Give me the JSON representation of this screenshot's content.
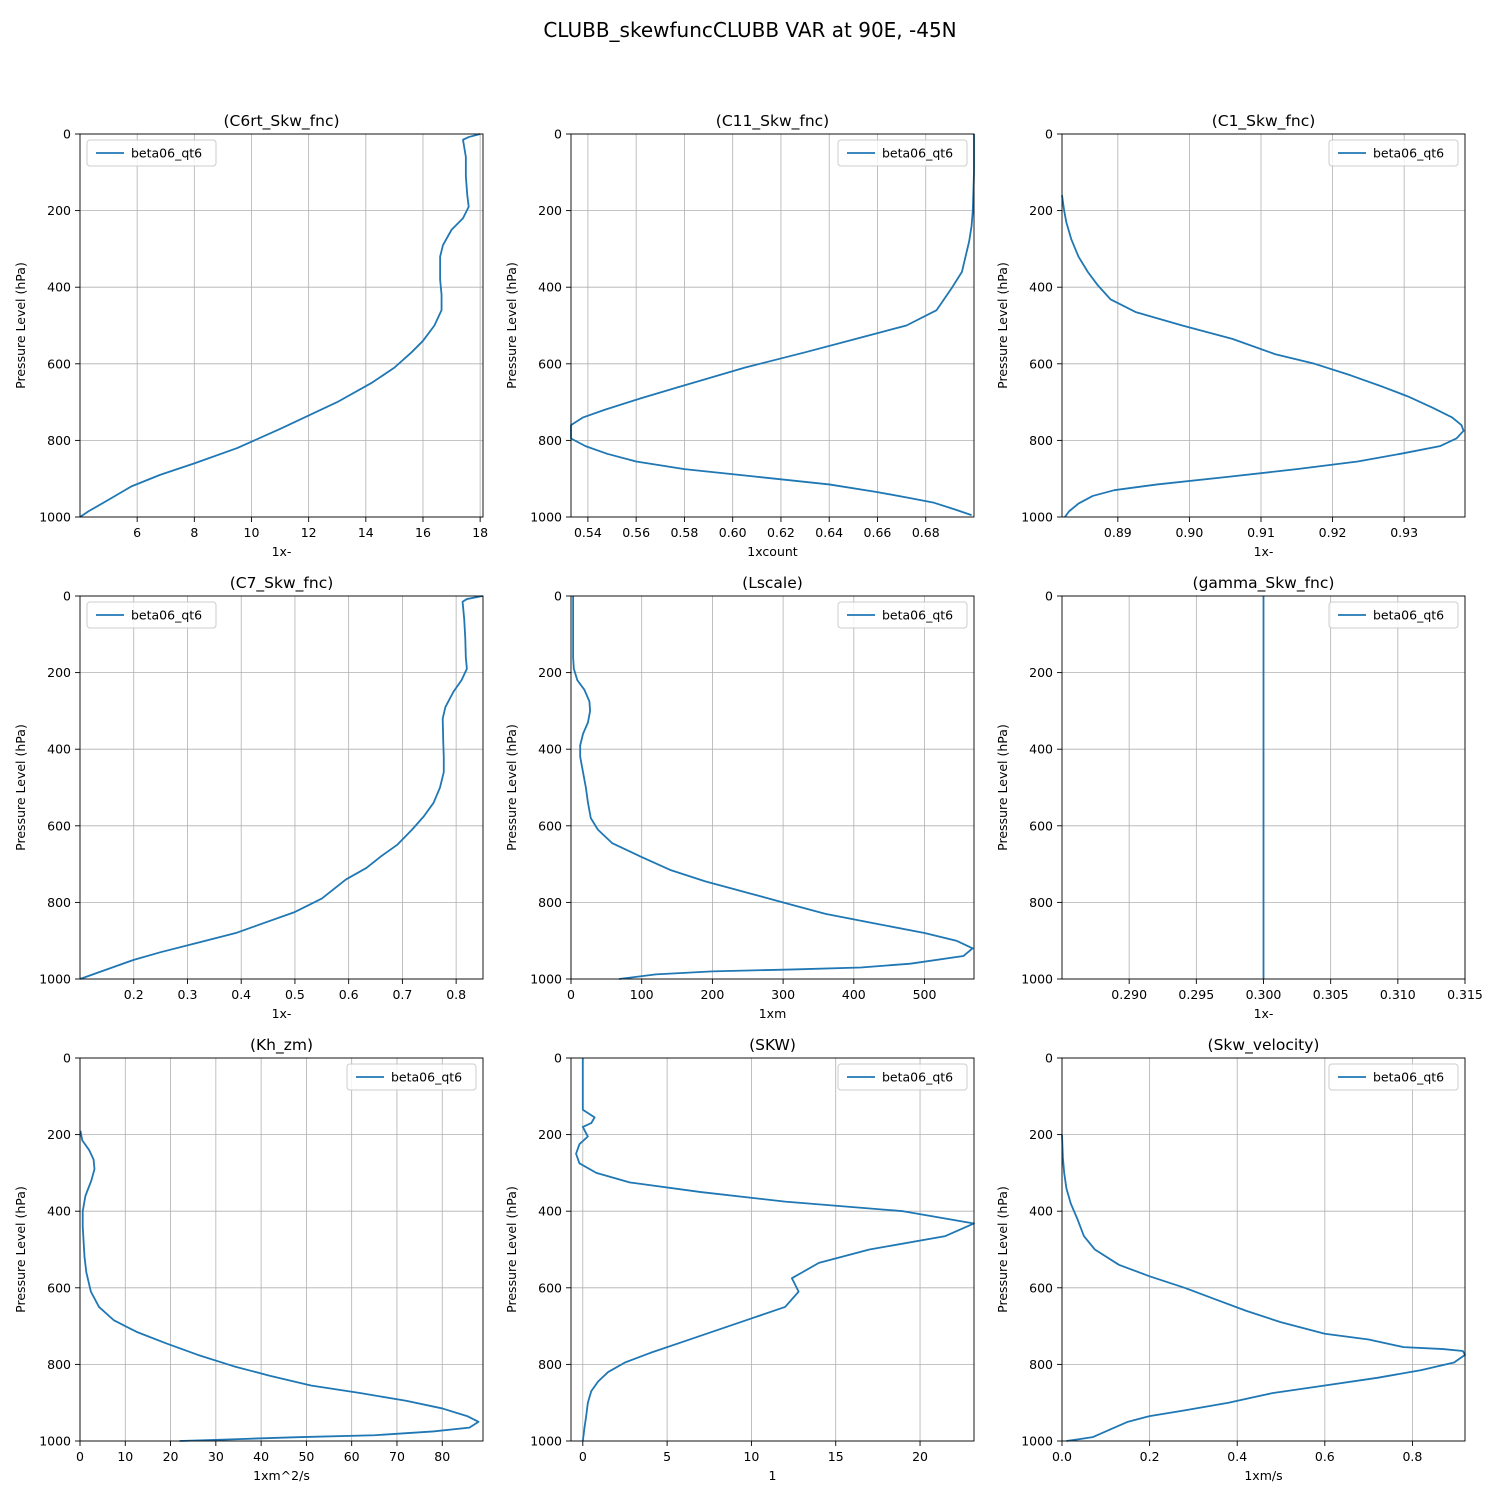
{
  "figure": {
    "title": "CLUBB_skewfuncCLUBB VAR at 90E, -45N"
  },
  "colors": {
    "series": "#1f77b4",
    "grid": "#b0b0b0"
  },
  "chart_data": [
    {
      "type": "line",
      "title": "(C6rt_Skw_fnc)",
      "xlabel": "1x-",
      "ylabel": "Pressure Level (hPa)",
      "xlim": [
        4.0,
        18.1
      ],
      "ylim": [
        1000,
        0
      ],
      "y_inverted": true,
      "xticks": [
        6,
        8,
        10,
        12,
        14,
        16,
        18
      ],
      "xtick_labels": [
        "6",
        "8",
        "10",
        "12",
        "14",
        "16",
        "18"
      ],
      "yticks": [
        0,
        200,
        400,
        600,
        800,
        1000
      ],
      "grid": true,
      "legend": "upper left",
      "series": [
        {
          "name": "beta06_qt6",
          "x": [
            18.0,
            17.6,
            17.4,
            17.5,
            17.5,
            17.55,
            17.6,
            17.4,
            17.0,
            16.7,
            16.6,
            16.6,
            16.65,
            16.65,
            16.4,
            16.0,
            15.6,
            15.0,
            14.2,
            13.0,
            11.0,
            9.5,
            8.0,
            6.8,
            5.8,
            5.0,
            4.3,
            4.0
          ],
          "y": [
            0,
            8,
            15,
            60,
            110,
            160,
            190,
            220,
            250,
            290,
            320,
            380,
            420,
            460,
            500,
            540,
            570,
            610,
            650,
            700,
            770,
            820,
            860,
            890,
            920,
            955,
            985,
            1000
          ]
        }
      ]
    },
    {
      "type": "line",
      "title": "(C11_Skw_fnc)",
      "xlabel": "1xcount",
      "ylabel": "Pressure Level (hPa)",
      "xlim": [
        0.533,
        0.7
      ],
      "ylim": [
        1000,
        0
      ],
      "y_inverted": true,
      "xticks": [
        0.54,
        0.56,
        0.58,
        0.6,
        0.62,
        0.64,
        0.66,
        0.68
      ],
      "xtick_labels": [
        "0.54",
        "0.56",
        "0.58",
        "0.60",
        "0.62",
        "0.64",
        "0.66",
        "0.68"
      ],
      "yticks": [
        0,
        200,
        400,
        600,
        800,
        1000
      ],
      "grid": true,
      "legend": "upper right",
      "series": [
        {
          "name": "beta06_qt6",
          "x": [
            0.7,
            0.7,
            0.6995,
            0.699,
            0.698,
            0.6965,
            0.695,
            0.691,
            0.6845,
            0.672,
            0.654,
            0.63,
            0.605,
            0.578,
            0.562,
            0.547,
            0.538,
            0.533,
            0.533,
            0.539,
            0.548,
            0.56,
            0.58,
            0.61,
            0.64,
            0.66,
            0.673,
            0.683,
            0.692,
            0.699
          ],
          "y": [
            0,
            100,
            200,
            240,
            280,
            320,
            360,
            400,
            460,
            500,
            530,
            570,
            610,
            660,
            690,
            720,
            740,
            760,
            795,
            815,
            835,
            855,
            875,
            895,
            915,
            935,
            950,
            962,
            980,
            995
          ]
        }
      ]
    },
    {
      "type": "line",
      "title": "(C1_Skw_fnc)",
      "xlabel": "1x-",
      "ylabel": "Pressure Level (hPa)",
      "xlim": [
        0.8822,
        0.9385
      ],
      "ylim": [
        1000,
        0
      ],
      "y_inverted": true,
      "xticks": [
        0.89,
        0.9,
        0.91,
        0.92,
        0.93
      ],
      "xtick_labels": [
        "0.89",
        "0.90",
        "0.91",
        "0.92",
        "0.93"
      ],
      "yticks": [
        0,
        200,
        400,
        600,
        800,
        1000
      ],
      "grid": true,
      "legend": "upper right",
      "series": [
        {
          "name": "beta06_qt6",
          "x": [
            0.8822,
            0.8825,
            0.8828,
            0.8835,
            0.8845,
            0.8858,
            0.8872,
            0.889,
            0.8925,
            0.899,
            0.906,
            0.912,
            0.9175,
            0.9225,
            0.927,
            0.9305,
            0.934,
            0.9367,
            0.938,
            0.9383,
            0.9373,
            0.935,
            0.9295,
            0.9235,
            0.915,
            0.9055,
            0.8955,
            0.8895,
            0.8865,
            0.8845,
            0.8832,
            0.8826
          ],
          "y": [
            160,
            200,
            230,
            275,
            320,
            360,
            395,
            432,
            465,
            500,
            535,
            575,
            600,
            630,
            660,
            685,
            715,
            740,
            760,
            775,
            795,
            815,
            835,
            855,
            875,
            895,
            915,
            930,
            945,
            965,
            985,
            1000
          ]
        }
      ]
    },
    {
      "type": "line",
      "title": "(C7_Skw_fnc)",
      "xlabel": "1x-",
      "ylabel": "Pressure Level (hPa)",
      "xlim": [
        0.1,
        0.85
      ],
      "ylim": [
        1000,
        0
      ],
      "y_inverted": true,
      "xticks": [
        0.2,
        0.3,
        0.4,
        0.5,
        0.6,
        0.7,
        0.8
      ],
      "xtick_labels": [
        "0.2",
        "0.3",
        "0.4",
        "0.5",
        "0.6",
        "0.7",
        "0.8"
      ],
      "yticks": [
        0,
        200,
        400,
        600,
        800,
        1000
      ],
      "grid": true,
      "legend": "upper left",
      "series": [
        {
          "name": "beta06_qt6",
          "x": [
            0.849,
            0.82,
            0.812,
            0.815,
            0.817,
            0.818,
            0.82,
            0.81,
            0.795,
            0.78,
            0.775,
            0.776,
            0.777,
            0.777,
            0.77,
            0.758,
            0.74,
            0.718,
            0.69,
            0.66,
            0.633,
            0.595,
            0.55,
            0.5,
            0.44,
            0.39,
            0.32,
            0.25,
            0.2,
            0.16,
            0.13,
            0.1
          ],
          "y": [
            0,
            8,
            15,
            60,
            110,
            160,
            190,
            220,
            250,
            290,
            320,
            380,
            420,
            460,
            500,
            540,
            575,
            610,
            650,
            680,
            710,
            740,
            790,
            825,
            855,
            880,
            905,
            930,
            950,
            970,
            985,
            1000
          ]
        }
      ]
    },
    {
      "type": "line",
      "title": "(Lscale)",
      "xlabel": "1xm",
      "ylabel": "Pressure Level (hPa)",
      "xlim": [
        0,
        570
      ],
      "ylim": [
        1000,
        0
      ],
      "y_inverted": true,
      "xticks": [
        0,
        100,
        200,
        300,
        400,
        500
      ],
      "xtick_labels": [
        "0",
        "100",
        "200",
        "300",
        "400",
        "500"
      ],
      "yticks": [
        0,
        200,
        400,
        600,
        800,
        1000
      ],
      "grid": true,
      "legend": "upper right",
      "series": [
        {
          "name": "beta06_qt6",
          "x": [
            3,
            3,
            3,
            4,
            9,
            19,
            26,
            27,
            24,
            17,
            13,
            13,
            17,
            21,
            24,
            28,
            38,
            58,
            98,
            140,
            190,
            250,
            310,
            360,
            430,
            500,
            545,
            568,
            555,
            480,
            410,
            315,
            200,
            120,
            68
          ],
          "y": [
            0,
            80,
            160,
            190,
            220,
            245,
            275,
            300,
            330,
            360,
            390,
            420,
            460,
            500,
            540,
            580,
            610,
            645,
            680,
            715,
            745,
            775,
            805,
            830,
            855,
            880,
            900,
            920,
            940,
            960,
            970,
            975,
            980,
            988,
            1000
          ]
        }
      ]
    },
    {
      "type": "line",
      "title": "(gamma_Skw_fnc)",
      "xlabel": "1x-",
      "ylabel": "Pressure Level (hPa)",
      "xlim": [
        0.285,
        0.315
      ],
      "ylim": [
        1000,
        0
      ],
      "y_inverted": true,
      "xticks": [
        0.29,
        0.295,
        0.3,
        0.305,
        0.31,
        0.315
      ],
      "xtick_labels": [
        "0.290",
        "0.295",
        "0.300",
        "0.305",
        "0.310",
        "0.315"
      ],
      "yticks": [
        0,
        200,
        400,
        600,
        800,
        1000
      ],
      "grid": true,
      "legend": "upper right",
      "series": [
        {
          "name": "beta06_qt6",
          "x": [
            0.3,
            0.3
          ],
          "y": [
            0,
            1000
          ]
        }
      ]
    },
    {
      "type": "line",
      "title": "(Kh_zm)",
      "xlabel": "1xm^2/s",
      "ylabel": "Pressure Level (hPa)",
      "xlim": [
        0,
        89
      ],
      "ylim": [
        1000,
        0
      ],
      "y_inverted": true,
      "xticks": [
        0,
        10,
        20,
        30,
        40,
        50,
        60,
        70,
        80
      ],
      "xtick_labels": [
        "0",
        "10",
        "20",
        "30",
        "40",
        "50",
        "60",
        "70",
        "80"
      ],
      "yticks": [
        0,
        200,
        400,
        600,
        800,
        1000
      ],
      "grid": true,
      "legend": "upper right",
      "series": [
        {
          "name": "beta06_qt6",
          "x": [
            0.1,
            0.5,
            2.0,
            3.0,
            3.2,
            2.5,
            1.2,
            0.6,
            0.6,
            0.8,
            1.0,
            1.4,
            2.4,
            4.2,
            7.5,
            12.5,
            19.0,
            26.0,
            34.0,
            42.0,
            51.0,
            62.0,
            72.0,
            80.0,
            85.5,
            88.0,
            86.0,
            78.0,
            65.0,
            48.0,
            35.0,
            22.0
          ],
          "y": [
            190,
            215,
            240,
            265,
            290,
            320,
            360,
            400,
            440,
            480,
            520,
            560,
            610,
            650,
            685,
            715,
            745,
            775,
            805,
            830,
            855,
            875,
            895,
            915,
            935,
            950,
            965,
            975,
            985,
            990,
            995,
            1000
          ]
        }
      ]
    },
    {
      "type": "line",
      "title": "(SKW)",
      "xlabel": "1",
      "ylabel": "Pressure Level (hPa)",
      "xlim": [
        -0.7,
        23.2
      ],
      "ylim": [
        1000,
        0
      ],
      "y_inverted": true,
      "xticks": [
        0,
        5,
        10,
        15,
        20
      ],
      "xtick_labels": [
        "0",
        "5",
        "10",
        "15",
        "20"
      ],
      "yticks": [
        0,
        200,
        400,
        600,
        800,
        1000
      ],
      "grid": true,
      "legend": "upper right",
      "series": [
        {
          "name": "beta06_qt6",
          "x": [
            0.0,
            0.0,
            0.0,
            0.7,
            0.5,
            0.0,
            0.3,
            -0.2,
            -0.4,
            -0.2,
            0.8,
            2.8,
            7.0,
            12.0,
            19.0,
            23.2,
            21.5,
            17.0,
            14.0,
            13.0,
            12.4,
            12.8,
            12.0,
            10.0,
            8.0,
            6.0,
            4.0,
            2.5,
            1.5,
            0.9,
            0.5,
            0.3,
            0.2,
            0.1,
            0.0
          ],
          "y": [
            0,
            60,
            135,
            155,
            170,
            180,
            205,
            225,
            250,
            275,
            300,
            325,
            350,
            375,
            400,
            432,
            465,
            500,
            535,
            560,
            575,
            610,
            650,
            680,
            710,
            740,
            770,
            795,
            820,
            845,
            870,
            900,
            935,
            965,
            1000
          ]
        }
      ]
    },
    {
      "type": "line",
      "title": "(Skw_velocity)",
      "xlabel": "1xm/s",
      "ylabel": "Pressure Level (hPa)",
      "xlim": [
        0,
        0.92
      ],
      "ylim": [
        1000,
        0
      ],
      "y_inverted": true,
      "xticks": [
        0.0,
        0.2,
        0.4,
        0.6,
        0.8
      ],
      "xtick_labels": [
        "0.0",
        "0.2",
        "0.4",
        "0.6",
        "0.8"
      ],
      "yticks": [
        0,
        200,
        400,
        600,
        800,
        1000
      ],
      "grid": true,
      "legend": "upper right",
      "series": [
        {
          "name": "beta06_qt6",
          "x": [
            0.0,
            0.002,
            0.005,
            0.01,
            0.02,
            0.035,
            0.05,
            0.075,
            0.13,
            0.2,
            0.28,
            0.35,
            0.42,
            0.5,
            0.6,
            0.7,
            0.78,
            0.87,
            0.915,
            0.92,
            0.895,
            0.82,
            0.72,
            0.6,
            0.48,
            0.38,
            0.28,
            0.2,
            0.15,
            0.12,
            0.09,
            0.07,
            0.04,
            0.01
          ],
          "y": [
            200,
            260,
            300,
            340,
            380,
            420,
            465,
            500,
            540,
            570,
            600,
            630,
            660,
            690,
            720,
            735,
            755,
            760,
            765,
            775,
            795,
            815,
            835,
            855,
            875,
            900,
            920,
            935,
            950,
            965,
            980,
            990,
            995,
            1000
          ]
        }
      ]
    }
  ]
}
